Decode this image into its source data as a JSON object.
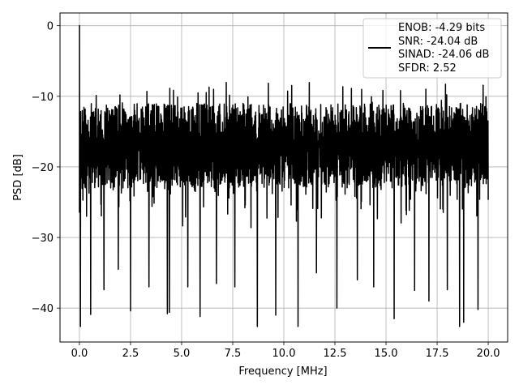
{
  "chart_data": {
    "type": "line",
    "title": "",
    "xlabel": "Frequency [MHz]",
    "ylabel": "PSD [dB]",
    "xlim": [
      -0.95,
      20.95
    ],
    "ylim": [
      -44.8,
      1.8
    ],
    "xticks": [
      0,
      2.5,
      5,
      7.5,
      10,
      12.5,
      15,
      17.5,
      20
    ],
    "xtick_labels": [
      "0.0",
      "2.5",
      "5.0",
      "7.5",
      "10.0",
      "12.5",
      "15.0",
      "17.5",
      "20.0"
    ],
    "yticks": [
      0,
      -10,
      -20,
      -30,
      -40
    ],
    "ytick_labels": [
      "0",
      "−10",
      "−20",
      "−30",
      "−40"
    ],
    "grid": true,
    "legend_position": "top-right",
    "series_color": "#000000",
    "legend_lines": [
      "ENOB: -4.29 bits",
      "SNR: -24.04 dB",
      "SINAD: -24.06 dB",
      "SFDR: 2.52"
    ],
    "series": [
      {
        "name": "",
        "x_range": [
          0,
          20
        ],
        "num_points": 2000,
        "peak": {
          "x": 0,
          "y": 0
        },
        "typical_upper_envelope": -8,
        "typical_lower_envelope": -27,
        "deep_dips": [
          {
            "x": 0.05,
            "y": -42.6
          },
          {
            "x": 0.35,
            "y": -27.0
          },
          {
            "x": 0.55,
            "y": -40.9
          },
          {
            "x": 1.2,
            "y": -37.4
          },
          {
            "x": 1.9,
            "y": -34.5
          },
          {
            "x": 2.5,
            "y": -40.4
          },
          {
            "x": 3.4,
            "y": -37.0
          },
          {
            "x": 4.3,
            "y": -40.8
          },
          {
            "x": 4.4,
            "y": -40.6
          },
          {
            "x": 5.3,
            "y": -37.0
          },
          {
            "x": 5.9,
            "y": -41.2
          },
          {
            "x": 6.7,
            "y": -36.5
          },
          {
            "x": 7.6,
            "y": -37.0
          },
          {
            "x": 8.7,
            "y": -42.6
          },
          {
            "x": 9.6,
            "y": -41.0
          },
          {
            "x": 10.7,
            "y": -42.6
          },
          {
            "x": 11.6,
            "y": -35.0
          },
          {
            "x": 12.6,
            "y": -40.0
          },
          {
            "x": 13.6,
            "y": -36.0
          },
          {
            "x": 14.4,
            "y": -37.0
          },
          {
            "x": 15.4,
            "y": -41.5
          },
          {
            "x": 16.4,
            "y": -37.5
          },
          {
            "x": 17.1,
            "y": -39.0
          },
          {
            "x": 18.0,
            "y": -37.4
          },
          {
            "x": 18.6,
            "y": -42.6
          },
          {
            "x": 18.8,
            "y": -42.0
          },
          {
            "x": 19.5,
            "y": -40.2
          }
        ]
      }
    ]
  }
}
